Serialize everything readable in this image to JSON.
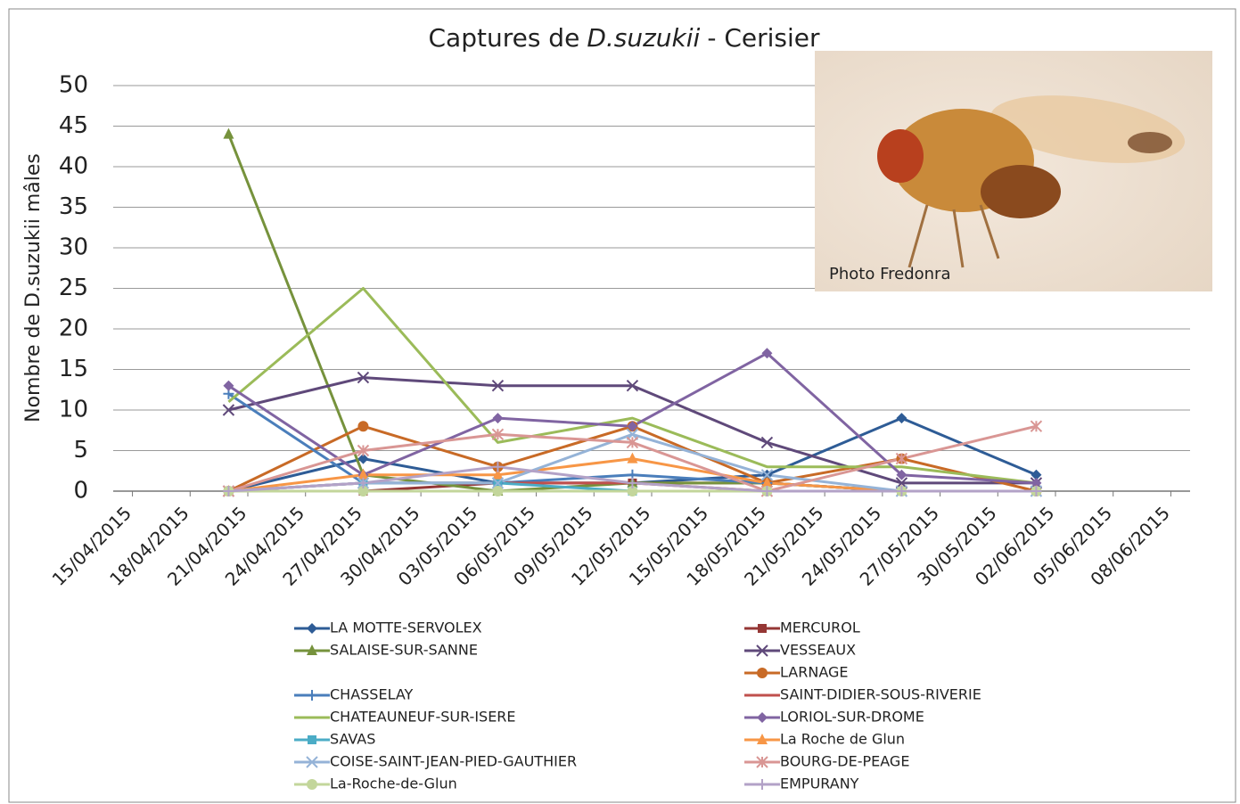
{
  "chart_data": {
    "type": "line",
    "title": [
      "Captures de",
      "D.suzukii",
      "- Cerisier"
    ],
    "y_label": "Nombre de D.suzukii mâles",
    "annotation": "Photo Fredonra",
    "x": [
      "20/04/2015",
      "27/04/2015",
      "04/05/2015",
      "11/05/2015",
      "18/05/2015",
      "25/05/2015",
      "01/06/2015"
    ],
    "xlim": [
      "14/04/2015",
      "09/06/2015"
    ],
    "xticks": [
      "15/04/2015",
      "18/04/2015",
      "21/04/2015",
      "24/04/2015",
      "27/04/2015",
      "30/04/2015",
      "03/05/2015",
      "06/05/2015",
      "09/05/2015",
      "12/05/2015",
      "15/05/2015",
      "18/05/2015",
      "21/05/2015",
      "24/05/2015",
      "27/05/2015",
      "30/05/2015",
      "02/06/2015",
      "05/06/2015",
      "08/06/2015"
    ],
    "ylim": [
      0,
      50
    ],
    "yticks": [
      0,
      5,
      10,
      15,
      20,
      25,
      30,
      35,
      40,
      45,
      50
    ],
    "grid": true,
    "series": [
      {
        "name": "LA MOTTE-SERVOLEX",
        "color": "#2e5c96",
        "marker": "diamond",
        "values": [
          0,
          4,
          1,
          1,
          2,
          9,
          2
        ]
      },
      {
        "name": "MERCUROL",
        "color": "#953735",
        "marker": "square",
        "values": [
          0,
          0,
          1,
          1,
          1,
          0,
          0
        ]
      },
      {
        "name": "SALAISE-SUR-SANNE",
        "color": "#76923c",
        "marker": "triangle",
        "values": [
          44,
          2,
          0,
          1,
          1,
          0,
          0
        ]
      },
      {
        "name": "VESSEAUX",
        "color": "#5f497a",
        "marker": "x",
        "values": [
          10,
          14,
          13,
          13,
          6,
          1,
          1
        ]
      },
      {
        "name": "LARNAGE",
        "color": "#c86a26",
        "marker": "circle",
        "values": [
          0,
          8,
          3,
          8,
          1,
          4,
          0
        ]
      },
      {
        "name": "CHASSELAY",
        "color": "#4a7ebb",
        "marker": "plus",
        "values": [
          12,
          1,
          1,
          2,
          1,
          0,
          0
        ]
      },
      {
        "name": "SAINT-DIDIER-SOUS-RIVERIE",
        "color": "#c0504d",
        "marker": "none",
        "values": [
          0,
          1,
          1,
          1,
          0,
          0,
          0
        ]
      },
      {
        "name": "CHATEAUNEUF-SUR-ISERE",
        "color": "#9bbb59",
        "marker": "none",
        "values": [
          11,
          25,
          6,
          9,
          3,
          3,
          1
        ]
      },
      {
        "name": "LORIOL-SUR-DROME",
        "color": "#8064a2",
        "marker": "diamond",
        "values": [
          13,
          2,
          9,
          8,
          17,
          2,
          1
        ]
      },
      {
        "name": "SAVAS",
        "color": "#4bacc6",
        "marker": "square",
        "values": [
          0,
          1,
          1,
          0,
          0,
          0,
          0
        ]
      },
      {
        "name": "La Roche de Glun",
        "color": "#f79646",
        "marker": "triangle",
        "values": [
          0,
          2,
          2,
          4,
          1,
          0,
          0
        ]
      },
      {
        "name": "COISE-SAINT-JEAN-PIED-GAUTHIER",
        "color": "#95b3d7",
        "marker": "x",
        "values": [
          0,
          1,
          1,
          7,
          2,
          0,
          0
        ]
      },
      {
        "name": "BOURG-DE-PEAGE",
        "color": "#d99694",
        "marker": "star",
        "values": [
          0,
          5,
          7,
          6,
          0,
          4,
          8
        ]
      },
      {
        "name": "La-Roche-de-Glun",
        "color": "#c3d69b",
        "marker": "circle",
        "values": [
          0,
          0,
          0,
          0,
          0,
          0,
          0
        ]
      },
      {
        "name": "EMPURANY",
        "color": "#b3a2c7",
        "marker": "plus",
        "values": [
          0,
          1,
          3,
          1,
          0,
          0,
          0
        ]
      }
    ]
  }
}
